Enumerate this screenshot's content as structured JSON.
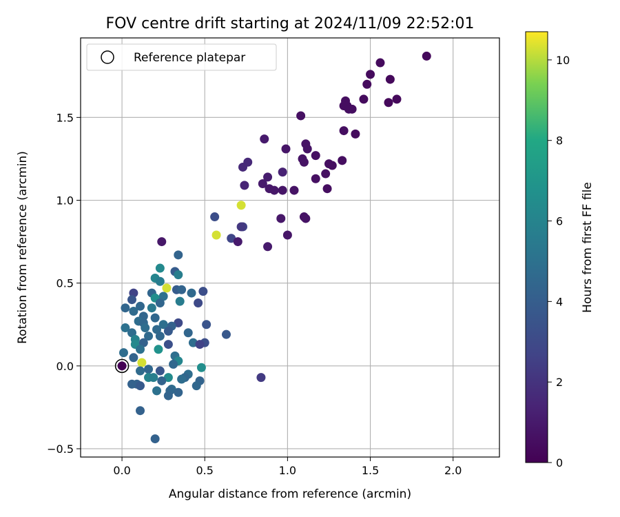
{
  "chart_data": {
    "type": "scatter",
    "title": "FOV centre drift starting at 2024/11/09 22:52:01",
    "xlabel": "Angular distance from reference (arcmin)",
    "ylabel": "Rotation from reference (arcmin)",
    "xlim": [
      -0.25,
      2.28
    ],
    "ylim": [
      -0.55,
      1.98
    ],
    "xticks": [
      0.0,
      0.5,
      1.0,
      1.5,
      2.0
    ],
    "xtick_labels": [
      "0.0",
      "0.5",
      "1.0",
      "1.5",
      "2.0"
    ],
    "yticks": [
      -0.5,
      0.0,
      0.5,
      1.0,
      1.5
    ],
    "ytick_labels": [
      "−0.5",
      "0.0",
      "0.5",
      "1.0",
      "1.5"
    ],
    "grid": true,
    "legend": {
      "position": "top-left",
      "entries": [
        "Reference platepar"
      ]
    },
    "reference_point": {
      "x": 0.0,
      "y": 0.0
    },
    "colorbar": {
      "label": "Hours from first FF file",
      "colormap": "viridis",
      "range": [
        0,
        10.7
      ],
      "ticks": [
        0,
        2,
        4,
        6,
        8,
        10
      ],
      "tick_labels": [
        "0",
        "2",
        "4",
        "6",
        "8",
        "10"
      ]
    },
    "points": [
      {
        "x": 1.84,
        "y": 1.87,
        "h": 0.3
      },
      {
        "x": 1.56,
        "y": 1.83,
        "h": 0.4
      },
      {
        "x": 1.5,
        "y": 1.76,
        "h": 0.4
      },
      {
        "x": 1.62,
        "y": 1.73,
        "h": 0.3
      },
      {
        "x": 1.48,
        "y": 1.7,
        "h": 0.4
      },
      {
        "x": 1.46,
        "y": 1.61,
        "h": 0.4
      },
      {
        "x": 1.66,
        "y": 1.61,
        "h": 0.3
      },
      {
        "x": 1.61,
        "y": 1.59,
        "h": 0.3
      },
      {
        "x": 1.35,
        "y": 1.6,
        "h": 0.5
      },
      {
        "x": 1.34,
        "y": 1.57,
        "h": 0.5
      },
      {
        "x": 1.36,
        "y": 1.57,
        "h": 0.5
      },
      {
        "x": 1.37,
        "y": 1.55,
        "h": 0.5
      },
      {
        "x": 1.39,
        "y": 1.55,
        "h": 0.5
      },
      {
        "x": 1.08,
        "y": 1.51,
        "h": 0.6
      },
      {
        "x": 1.34,
        "y": 1.42,
        "h": 0.5
      },
      {
        "x": 1.41,
        "y": 1.4,
        "h": 0.4
      },
      {
        "x": 0.86,
        "y": 1.37,
        "h": 1.0
      },
      {
        "x": 1.11,
        "y": 1.34,
        "h": 0.7
      },
      {
        "x": 1.12,
        "y": 1.31,
        "h": 0.7
      },
      {
        "x": 0.99,
        "y": 1.31,
        "h": 0.8
      },
      {
        "x": 1.17,
        "y": 1.27,
        "h": 0.6
      },
      {
        "x": 1.09,
        "y": 1.25,
        "h": 0.7
      },
      {
        "x": 1.1,
        "y": 1.23,
        "h": 0.7
      },
      {
        "x": 1.33,
        "y": 1.24,
        "h": 0.5
      },
      {
        "x": 0.76,
        "y": 1.23,
        "h": 1.6
      },
      {
        "x": 1.25,
        "y": 1.22,
        "h": 0.5
      },
      {
        "x": 1.27,
        "y": 1.21,
        "h": 0.5
      },
      {
        "x": 0.73,
        "y": 1.2,
        "h": 1.6
      },
      {
        "x": 0.97,
        "y": 1.17,
        "h": 1.3
      },
      {
        "x": 1.23,
        "y": 1.16,
        "h": 0.6
      },
      {
        "x": 0.88,
        "y": 1.14,
        "h": 1.1
      },
      {
        "x": 1.17,
        "y": 1.13,
        "h": 0.6
      },
      {
        "x": 0.85,
        "y": 1.1,
        "h": 1.0
      },
      {
        "x": 0.74,
        "y": 1.09,
        "h": 1.4
      },
      {
        "x": 0.89,
        "y": 1.07,
        "h": 0.9
      },
      {
        "x": 0.92,
        "y": 1.06,
        "h": 0.9
      },
      {
        "x": 0.97,
        "y": 1.06,
        "h": 0.8
      },
      {
        "x": 1.04,
        "y": 1.06,
        "h": 0.7
      },
      {
        "x": 1.24,
        "y": 1.07,
        "h": 0.5
      },
      {
        "x": 0.72,
        "y": 0.97,
        "h": 10.3
      },
      {
        "x": 1.1,
        "y": 0.9,
        "h": 0.7
      },
      {
        "x": 1.11,
        "y": 0.89,
        "h": 0.7
      },
      {
        "x": 0.56,
        "y": 0.9,
        "h": 3.2
      },
      {
        "x": 0.96,
        "y": 0.89,
        "h": 0.9
      },
      {
        "x": 0.73,
        "y": 0.84,
        "h": 2.6
      },
      {
        "x": 0.72,
        "y": 0.84,
        "h": 2.2
      },
      {
        "x": 0.57,
        "y": 0.79,
        "h": 10.3
      },
      {
        "x": 1.0,
        "y": 0.79,
        "h": 0.8
      },
      {
        "x": 0.66,
        "y": 0.77,
        "h": 2.8
      },
      {
        "x": 0.7,
        "y": 0.75,
        "h": 1.0
      },
      {
        "x": 0.24,
        "y": 0.75,
        "h": 0.9
      },
      {
        "x": 0.88,
        "y": 0.72,
        "h": 1.0
      },
      {
        "x": 0.34,
        "y": 0.67,
        "h": 4.3
      },
      {
        "x": 0.23,
        "y": 0.59,
        "h": 6.3
      },
      {
        "x": 0.32,
        "y": 0.57,
        "h": 3.9
      },
      {
        "x": 0.34,
        "y": 0.55,
        "h": 5.7
      },
      {
        "x": 0.2,
        "y": 0.53,
        "h": 6.1
      },
      {
        "x": 0.23,
        "y": 0.51,
        "h": 5.6
      },
      {
        "x": 0.27,
        "y": 0.47,
        "h": 10.3
      },
      {
        "x": 0.33,
        "y": 0.46,
        "h": 3.9
      },
      {
        "x": 0.36,
        "y": 0.46,
        "h": 4.3
      },
      {
        "x": 0.49,
        "y": 0.45,
        "h": 3.2
      },
      {
        "x": 0.07,
        "y": 0.44,
        "h": 2.7
      },
      {
        "x": 0.18,
        "y": 0.44,
        "h": 4.4
      },
      {
        "x": 0.42,
        "y": 0.44,
        "h": 4.6
      },
      {
        "x": 0.25,
        "y": 0.42,
        "h": 5.0
      },
      {
        "x": 0.2,
        "y": 0.41,
        "h": 6.6
      },
      {
        "x": 0.06,
        "y": 0.4,
        "h": 3.6
      },
      {
        "x": 0.23,
        "y": 0.38,
        "h": 4.4
      },
      {
        "x": 0.35,
        "y": 0.39,
        "h": 5.6
      },
      {
        "x": 0.46,
        "y": 0.38,
        "h": 3.0
      },
      {
        "x": 0.11,
        "y": 0.36,
        "h": 4.5
      },
      {
        "x": 0.02,
        "y": 0.35,
        "h": 4.4
      },
      {
        "x": 0.18,
        "y": 0.35,
        "h": 5.4
      },
      {
        "x": 0.07,
        "y": 0.33,
        "h": 4.7
      },
      {
        "x": 0.13,
        "y": 0.3,
        "h": 4.4
      },
      {
        "x": 0.2,
        "y": 0.29,
        "h": 4.5
      },
      {
        "x": 0.1,
        "y": 0.27,
        "h": 4.8
      },
      {
        "x": 0.13,
        "y": 0.26,
        "h": 4.5
      },
      {
        "x": 0.34,
        "y": 0.26,
        "h": 3.0
      },
      {
        "x": 0.25,
        "y": 0.25,
        "h": 4.9
      },
      {
        "x": 0.3,
        "y": 0.24,
        "h": 4.2
      },
      {
        "x": 0.51,
        "y": 0.25,
        "h": 3.5
      },
      {
        "x": 0.02,
        "y": 0.23,
        "h": 5.0
      },
      {
        "x": 0.14,
        "y": 0.23,
        "h": 4.8
      },
      {
        "x": 0.21,
        "y": 0.22,
        "h": 4.6
      },
      {
        "x": 0.28,
        "y": 0.21,
        "h": 3.8
      },
      {
        "x": 0.06,
        "y": 0.2,
        "h": 4.8
      },
      {
        "x": 0.4,
        "y": 0.2,
        "h": 4.4
      },
      {
        "x": 0.63,
        "y": 0.19,
        "h": 3.7
      },
      {
        "x": 0.16,
        "y": 0.18,
        "h": 4.6
      },
      {
        "x": 0.23,
        "y": 0.18,
        "h": 4.5
      },
      {
        "x": 0.08,
        "y": 0.16,
        "h": 5.9
      },
      {
        "x": 0.08,
        "y": 0.13,
        "h": 6.3
      },
      {
        "x": 0.13,
        "y": 0.14,
        "h": 4.2
      },
      {
        "x": 0.43,
        "y": 0.14,
        "h": 4.8
      },
      {
        "x": 0.5,
        "y": 0.14,
        "h": 3.2
      },
      {
        "x": 0.47,
        "y": 0.13,
        "h": 2.6
      },
      {
        "x": 0.28,
        "y": 0.13,
        "h": 3.3
      },
      {
        "x": 0.11,
        "y": 0.1,
        "h": 5.0
      },
      {
        "x": 0.22,
        "y": 0.1,
        "h": 6.8
      },
      {
        "x": 0.01,
        "y": 0.08,
        "h": 4.8
      },
      {
        "x": 0.32,
        "y": 0.06,
        "h": 4.9
      },
      {
        "x": 0.07,
        "y": 0.05,
        "h": 4.3
      },
      {
        "x": 0.34,
        "y": 0.03,
        "h": 6.1
      },
      {
        "x": 0.12,
        "y": 0.02,
        "h": 10.3
      },
      {
        "x": 0.31,
        "y": 0.01,
        "h": 4.5
      },
      {
        "x": 0.48,
        "y": -0.01,
        "h": 6.6
      },
      {
        "x": 0.11,
        "y": -0.03,
        "h": 4.7
      },
      {
        "x": 0.16,
        "y": -0.02,
        "h": 4.5
      },
      {
        "x": 0.23,
        "y": -0.03,
        "h": 3.6
      },
      {
        "x": 0.4,
        "y": -0.05,
        "h": 4.8
      },
      {
        "x": 0.16,
        "y": -0.07,
        "h": 6.0
      },
      {
        "x": 0.19,
        "y": -0.07,
        "h": 5.7
      },
      {
        "x": 0.28,
        "y": -0.07,
        "h": 6.4
      },
      {
        "x": 0.38,
        "y": -0.07,
        "h": 4.4
      },
      {
        "x": 0.36,
        "y": -0.08,
        "h": 4.8
      },
      {
        "x": 0.84,
        "y": -0.07,
        "h": 2.3
      },
      {
        "x": 0.24,
        "y": -0.09,
        "h": 4.3
      },
      {
        "x": 0.47,
        "y": -0.09,
        "h": 4.3
      },
      {
        "x": 0.06,
        "y": -0.11,
        "h": 4.2
      },
      {
        "x": 0.09,
        "y": -0.11,
        "h": 4.2
      },
      {
        "x": 0.11,
        "y": -0.12,
        "h": 3.8
      },
      {
        "x": 0.45,
        "y": -0.12,
        "h": 4.5
      },
      {
        "x": 0.3,
        "y": -0.14,
        "h": 4.8
      },
      {
        "x": 0.21,
        "y": -0.15,
        "h": 5.0
      },
      {
        "x": 0.29,
        "y": -0.15,
        "h": 4.5
      },
      {
        "x": 0.34,
        "y": -0.16,
        "h": 4.3
      },
      {
        "x": 0.28,
        "y": -0.18,
        "h": 4.3
      },
      {
        "x": 0.11,
        "y": -0.27,
        "h": 4.2
      },
      {
        "x": 0.2,
        "y": -0.44,
        "h": 4.2
      }
    ]
  }
}
